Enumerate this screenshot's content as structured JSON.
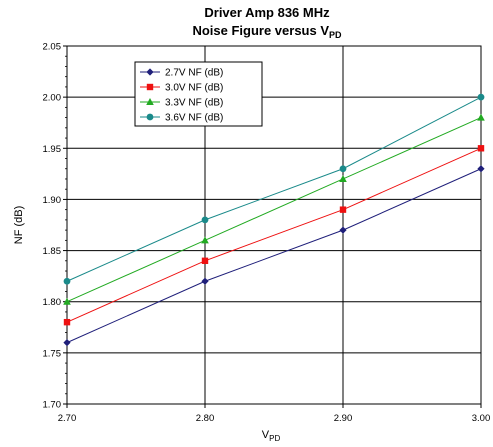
{
  "chart_data": {
    "type": "line",
    "title_line1": "Driver Amp 836 MHz",
    "title_line2_main": "Noise Figure versus V",
    "title_line2_sub": "PD",
    "xlabel_main": "V",
    "xlabel_sub": "PD",
    "ylabel": "NF (dB)",
    "x": [
      2.7,
      2.8,
      2.9,
      3.0
    ],
    "x_tick_labels": [
      "2.70",
      "2.80",
      "2.90",
      "3.00"
    ],
    "xlim": [
      2.7,
      3.0
    ],
    "ylim": [
      1.7,
      2.05
    ],
    "y_ticks": [
      1.7,
      1.75,
      1.8,
      1.85,
      1.9,
      1.95,
      2.0,
      2.05
    ],
    "y_tick_labels": [
      "1.70",
      "1.75",
      "1.80",
      "1.85",
      "1.90",
      "1.95",
      "2.00",
      "2.05"
    ],
    "grid": true,
    "legend_position": "top-left",
    "series": [
      {
        "name": "2.7V NF (dB)",
        "marker": "diamond",
        "color": "#1f1f7a",
        "values": [
          1.76,
          1.82,
          1.87,
          1.93
        ]
      },
      {
        "name": "3.0V NF (dB)",
        "marker": "square",
        "color": "#ee1111",
        "values": [
          1.78,
          1.84,
          1.89,
          1.95
        ]
      },
      {
        "name": "3.3V NF (dB)",
        "marker": "triangle",
        "color": "#22aa22",
        "values": [
          1.8,
          1.86,
          1.92,
          1.98
        ]
      },
      {
        "name": "3.6V NF (dB)",
        "marker": "circle",
        "color": "#1a8a8a",
        "values": [
          1.82,
          1.88,
          1.93,
          2.0
        ]
      }
    ]
  }
}
